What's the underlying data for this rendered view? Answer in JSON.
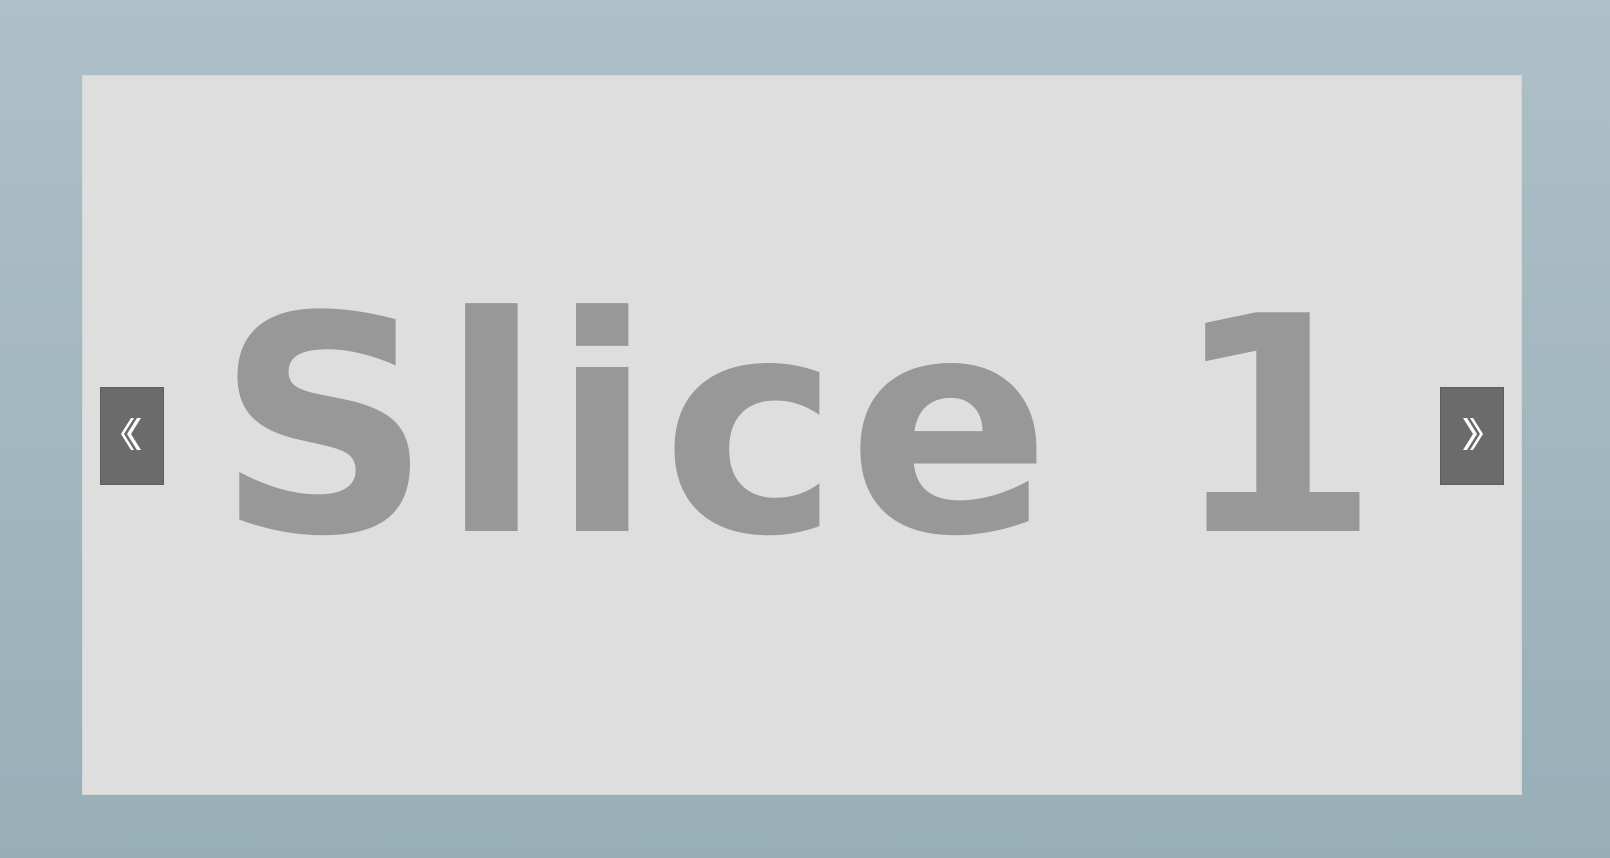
{
  "slider": {
    "current_slide": {
      "title": "Slice 1"
    },
    "prev_button": {
      "icon": "chevron-left-icon"
    },
    "next_button": {
      "icon": "chevron-right-icon"
    }
  },
  "colors": {
    "page_background_top": "#aebfc7",
    "page_background_bottom": "#98afb8",
    "slide_background": "#dedede",
    "slide_text": "#989898",
    "nav_button_background": "#6b6b6b",
    "nav_icon": "#ffffff"
  }
}
